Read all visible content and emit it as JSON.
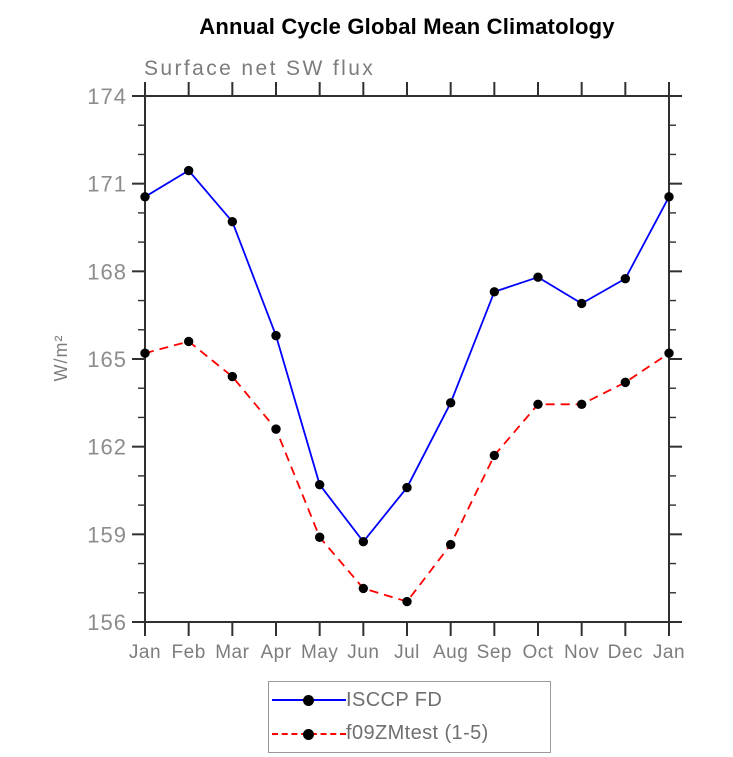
{
  "chart_data": {
    "type": "line",
    "title": "Annual Cycle Global Mean Climatology",
    "subtitle": "Surface net SW flux",
    "ylabel": "W/m²",
    "xlabel": "",
    "categories": [
      "Jan",
      "Feb",
      "Mar",
      "Apr",
      "May",
      "Jun",
      "Jul",
      "Aug",
      "Sep",
      "Oct",
      "Nov",
      "Dec",
      "Jan"
    ],
    "series": [
      {
        "name": "ISCCP FD",
        "line_style": "solid",
        "color": "#0000ff",
        "marker": "circle",
        "marker_color": "#000000",
        "values": [
          170.55,
          171.45,
          169.7,
          165.8,
          160.7,
          158.75,
          160.6,
          163.5,
          167.3,
          167.8,
          166.9,
          167.75,
          170.55
        ]
      },
      {
        "name": "f09ZMtest (1-5)",
        "line_style": "dashed",
        "color": "#ff0000",
        "marker": "circle",
        "marker_color": "#000000",
        "values": [
          165.2,
          165.6,
          164.4,
          162.6,
          158.9,
          157.15,
          156.7,
          158.65,
          161.7,
          163.45,
          163.45,
          164.2,
          165.2
        ]
      }
    ],
    "ylim": [
      156,
      174
    ],
    "ytick_major": [
      156,
      159,
      162,
      165,
      168,
      171,
      174
    ],
    "ytick_minor_step": 1,
    "grid": false,
    "legend_position": "bottom-center"
  },
  "colors": {
    "axis": "#303030",
    "tick_label": "#8c8c8c",
    "month_label": "#7d7d7d",
    "title": "#000000",
    "subtitle": "#7c7c7c",
    "ylabel": "#7c7c7c",
    "legend_border": "#9a9a9a",
    "legend_text": "#6f6f6f",
    "marker": "#000000"
  }
}
